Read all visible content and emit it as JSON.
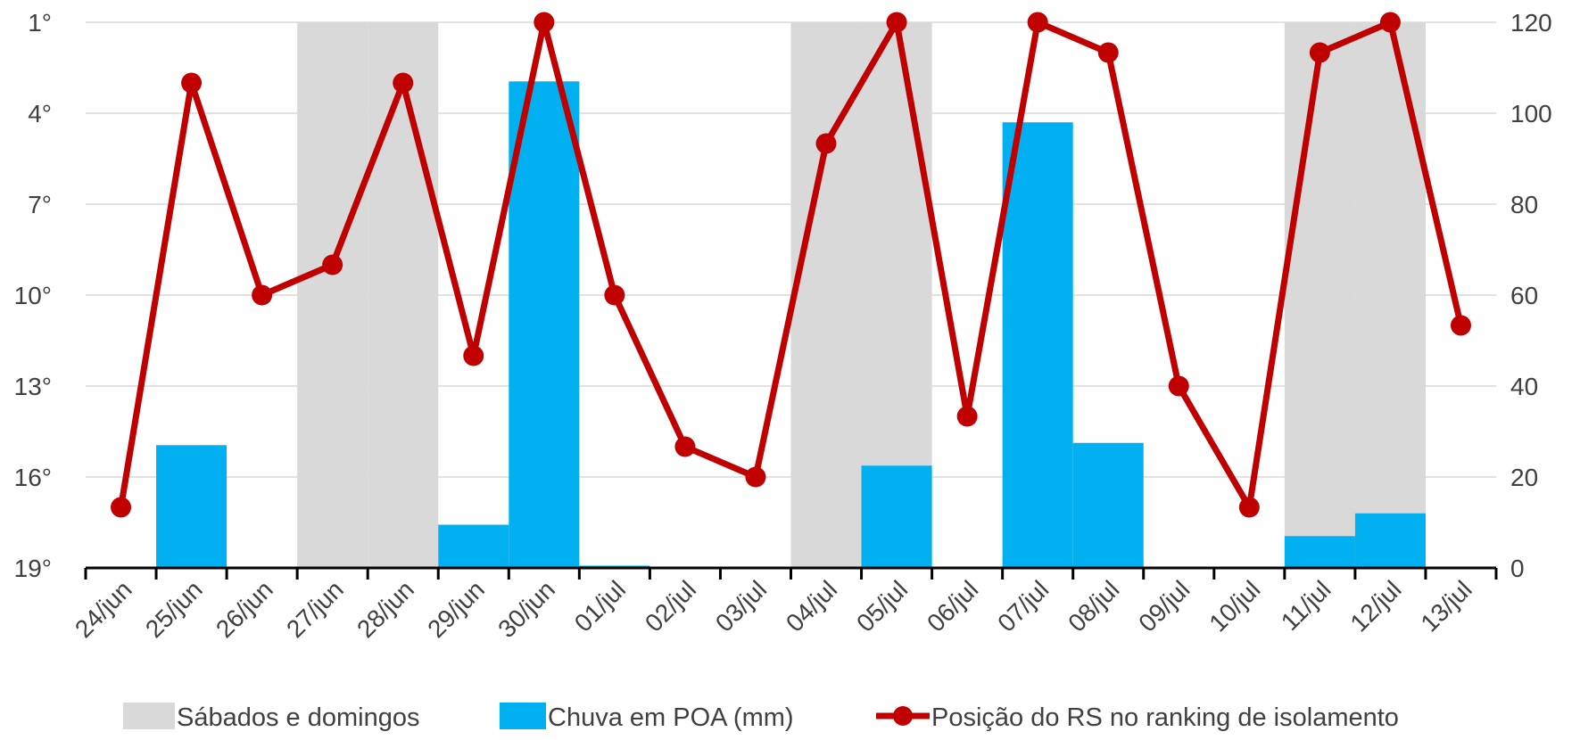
{
  "chart_data": {
    "type": "bar+line",
    "categories": [
      "24/jun",
      "25/jun",
      "26/jun",
      "27/jun",
      "28/jun",
      "29/jun",
      "30/jun",
      "01/jul",
      "02/jul",
      "03/jul",
      "04/jul",
      "05/jul",
      "06/jul",
      "07/jul",
      "08/jul",
      "09/jul",
      "10/jul",
      "11/jul",
      "12/jul",
      "13/jul"
    ],
    "left_axis": {
      "ticks": [
        "1°",
        "4°",
        "7°",
        "10°",
        "13°",
        "16°",
        "19°"
      ],
      "min": 1,
      "max": 19,
      "inverted": true
    },
    "right_axis": {
      "ticks": [
        "0",
        "20",
        "40",
        "60",
        "80",
        "100",
        "120"
      ],
      "min": 0,
      "max": 120
    },
    "grid": true,
    "legend_position": "bottom",
    "series": [
      {
        "name": "Sábados e domingos",
        "kind": "bar",
        "axis": "right",
        "color": "#d9d9d9",
        "values": [
          0,
          0,
          0,
          120,
          120,
          0,
          0,
          0,
          0,
          0,
          120,
          120,
          0,
          0,
          0,
          0,
          0,
          120,
          120,
          0
        ]
      },
      {
        "name": "Chuva em POA (mm)",
        "kind": "bar",
        "axis": "right",
        "color": "#00b0f0",
        "values": [
          0,
          27,
          0,
          0,
          0,
          9.5,
          107,
          0.5,
          0,
          0,
          0,
          22.5,
          0,
          98,
          27.5,
          0,
          0,
          7,
          12,
          0
        ]
      },
      {
        "name": "Posição do RS no ranking de isolamento",
        "kind": "line",
        "axis": "left",
        "color": "#c00000",
        "values": [
          17,
          3,
          10,
          9,
          3,
          12,
          1,
          10,
          15,
          16,
          5,
          1,
          14,
          1,
          2,
          13,
          17,
          2,
          1,
          11
        ]
      }
    ]
  }
}
